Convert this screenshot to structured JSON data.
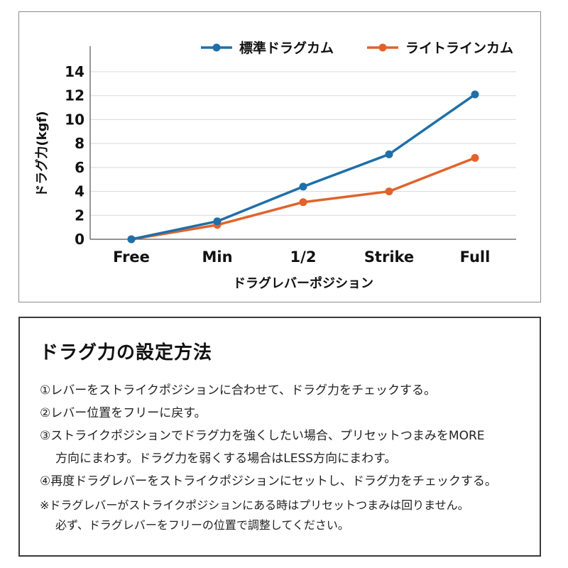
{
  "chart_data": {
    "type": "line",
    "categories": [
      "Free",
      "Min",
      "1/2",
      "Strike",
      "Full"
    ],
    "series": [
      {
        "name": "標準ドラグカム",
        "values": [
          0,
          1.5,
          4.4,
          7.1,
          12.1
        ],
        "color": "#1f6fa8"
      },
      {
        "name": "ライトラインカム",
        "values": [
          0,
          1.2,
          3.1,
          4.0,
          6.8
        ],
        "color": "#e0632c"
      }
    ],
    "xlabel": "ドラグレバーポジション",
    "ylabel": "ドラグ力(kgf)",
    "ylim": [
      0,
      14
    ],
    "yticks": [
      "0",
      "2",
      "4",
      "6",
      "8",
      "10",
      "12",
      "14"
    ],
    "grid": true,
    "legend_position": "top"
  },
  "settings": {
    "title": "ドラグ力の設定方法",
    "steps": [
      [
        "①レバーをストライクポジションに合わせて、ドラグ力をチェックする。"
      ],
      [
        "②レバー位置をフリーに戻す。"
      ],
      [
        "③ストライクポジションでドラグ力を強くしたい場合、プリセットつまみをMORE",
        "方向にまわす。ドラグ力を弱くする場合はLESS方向にまわす。"
      ],
      [
        "④再度ドラグレバーをストライクポジションにセットし、ドラグ力をチェックする。"
      ]
    ],
    "note": [
      "※ドラグレバーがストライクポジションにある時はプリセットつまみは回りません。",
      "必ず、ドラグレバーをフリーの位置で調整してください。"
    ]
  }
}
